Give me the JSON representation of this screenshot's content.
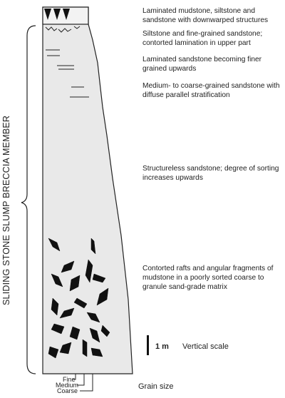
{
  "member_label": "SLIDING STONE SLUMP BRECCIA MEMBER",
  "facies": [
    {
      "id": "laminated-mudstone",
      "text": "Laminated mudstone, siltstone and sandstone with downwarped structures"
    },
    {
      "id": "siltstone-fine-sandstone",
      "text": "Siltstone and fine-grained sandstone; contorted lamination in upper part"
    },
    {
      "id": "laminated-sandstone",
      "text": "Laminated sandstone becoming finer grained upwards"
    },
    {
      "id": "medium-coarse-sandstone",
      "text": "Medium- to coarse-grained sandstone with diffuse parallel stratification"
    },
    {
      "id": "structureless-sandstone",
      "text": "Structureless sandstone; degree of sorting increases upwards"
    },
    {
      "id": "contorted-rafts",
      "text": "Contorted rafts and angular fragments of mudstone in a poorly sorted coarse to granule sand-grade matrix"
    }
  ],
  "scale": {
    "length_label": "1 m",
    "label": "Vertical scale"
  },
  "grain_size": {
    "title": "Grain size",
    "classes": [
      "Fine",
      "Medium",
      "Coarse"
    ]
  },
  "colors": {
    "column_fill": "#e9e9e9",
    "outline": "#222222",
    "clast_fill": "#111111"
  }
}
